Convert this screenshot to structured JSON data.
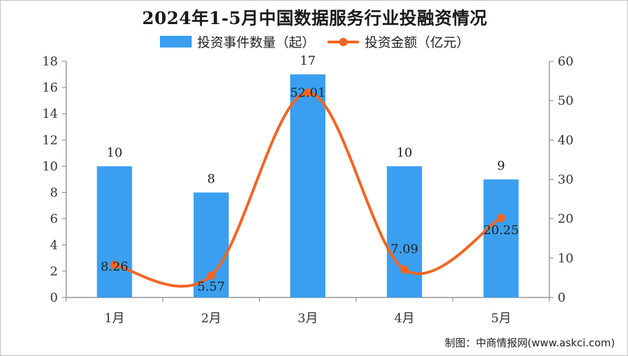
{
  "colors": {
    "bar": "#3a9ff0",
    "line": "#f26522",
    "axis": "#7f7f7f"
  },
  "chart_data": {
    "type": "bar",
    "title": "2024年1-5月中国数据服务行业投融资情况",
    "categories": [
      "1月",
      "2月",
      "3月",
      "4月",
      "5月"
    ],
    "series": [
      {
        "name": "投资事件数量（起）",
        "type": "bar",
        "axis": "left",
        "values": [
          10,
          8,
          17,
          10,
          9
        ]
      },
      {
        "name": "投资金额（亿元）",
        "type": "line",
        "axis": "right",
        "values": [
          8.26,
          5.57,
          52.01,
          7.09,
          20.25
        ]
      }
    ],
    "y_left": {
      "min": 0,
      "max": 18,
      "ticks": [
        0,
        2,
        4,
        6,
        8,
        10,
        12,
        14,
        16,
        18
      ]
    },
    "y_right": {
      "min": 0,
      "max": 60,
      "ticks": [
        0,
        10,
        20,
        30,
        40,
        50,
        60
      ]
    },
    "bar_labels": [
      "10",
      "8",
      "17",
      "10",
      "9"
    ],
    "line_labels": [
      "8.26",
      "5.57",
      "52.01",
      "7.09",
      "20.25"
    ],
    "legend_position": "top",
    "grid": false
  },
  "source": "制图：中商情报网(www.askci.com)"
}
